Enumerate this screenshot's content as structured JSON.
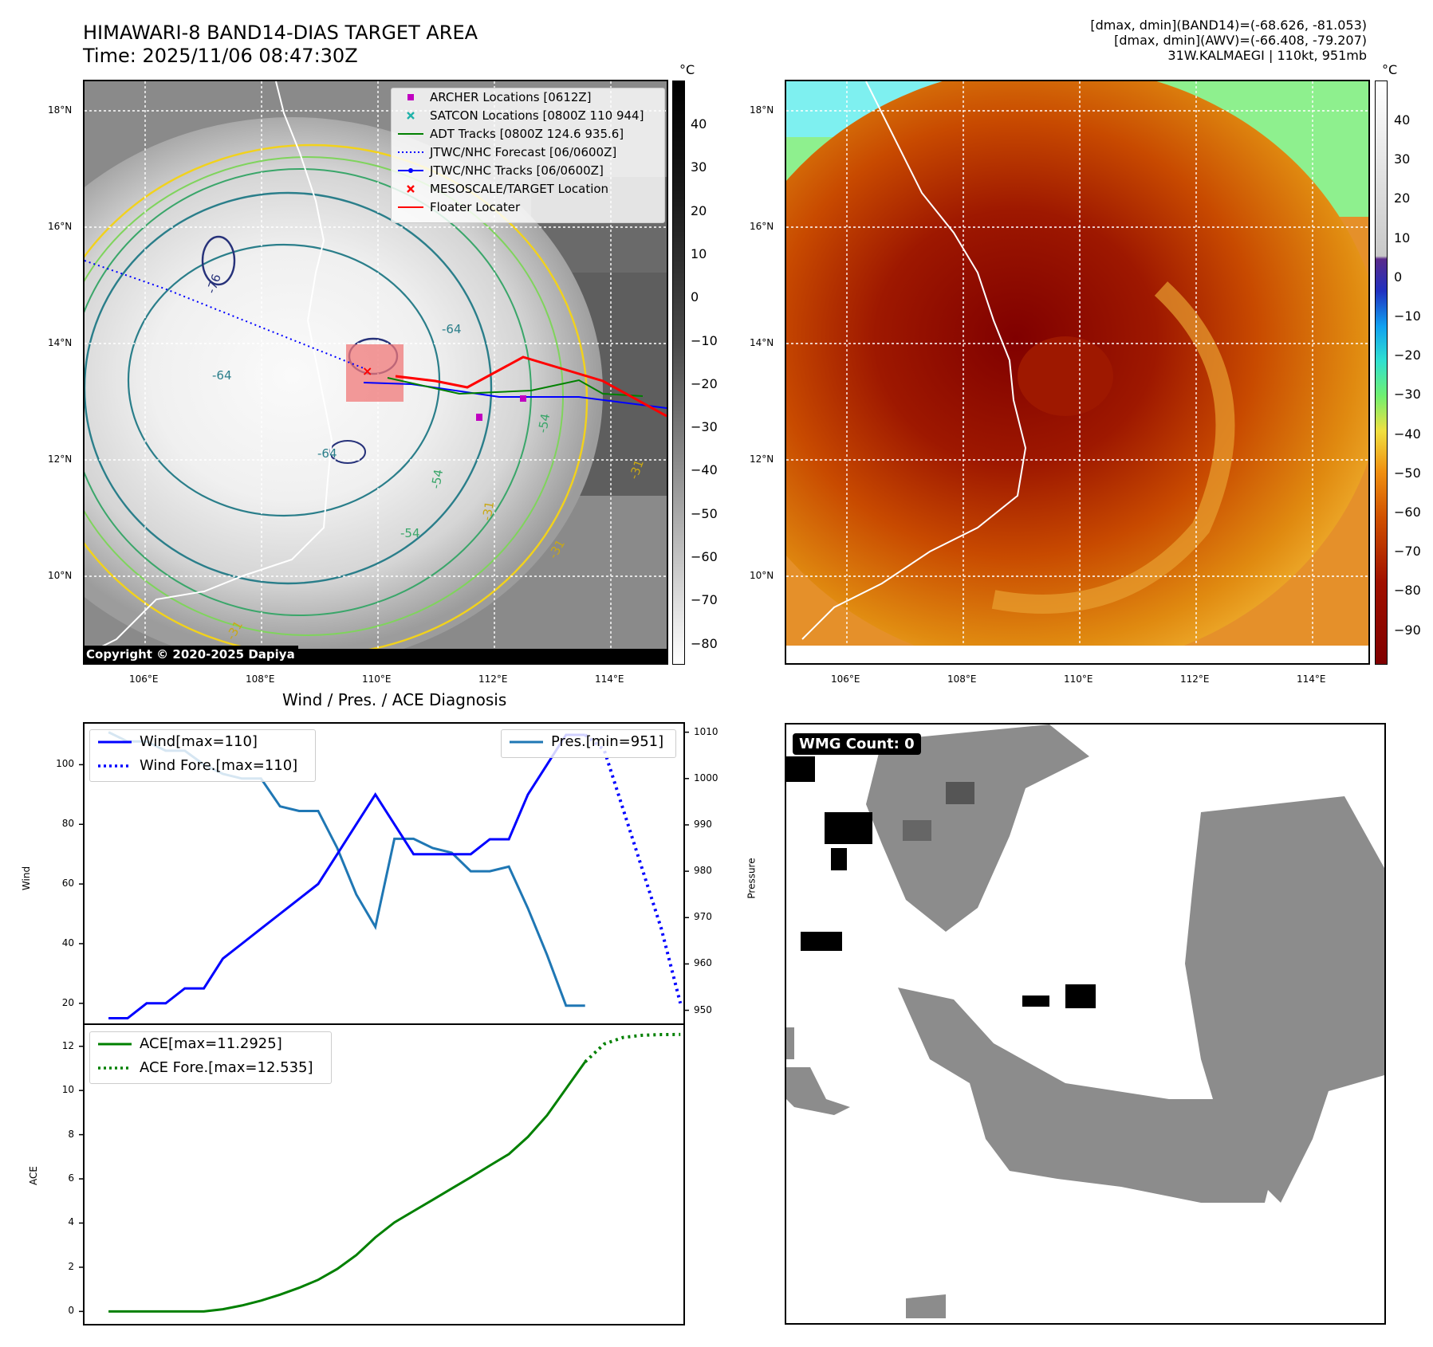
{
  "header": {
    "title_line1": "HIMAWARI-8 BAND14-DIAS TARGET AREA",
    "title_line2": "Time: 2025/11/06 08:47:30Z",
    "right_line1": "[dmax, dmin](BAND14)=(-68.626, -81.053)",
    "right_line2": "[dmax, dmin](AWV)=(-66.408, -79.207)",
    "right_line3": "31W.KALMAEGI | 110kt, 951mb"
  },
  "map_common": {
    "lat_labels": [
      "18°N",
      "16°N",
      "14°N",
      "12°N",
      "10°N"
    ],
    "lon_labels": [
      "106°E",
      "108°E",
      "110°E",
      "112°E",
      "114°E"
    ]
  },
  "left_map": {
    "colorbar_unit": "°C",
    "colorbar_ticks": [
      "40",
      "30",
      "20",
      "10",
      "0",
      "−10",
      "−20",
      "−30",
      "−40",
      "−50",
      "−60",
      "−70",
      "−80"
    ],
    "contour_labels": [
      "-76",
      "-64",
      "-64",
      "-64",
      "-54",
      "-54",
      "-54",
      "-31",
      "-31",
      "-31",
      "-31"
    ],
    "legend": [
      {
        "label": "ARCHER Locations [0612Z]",
        "color": "#c000c0",
        "symbol": "square"
      },
      {
        "label": "SATCON Locations [0800Z 110 944]",
        "color": "#20b2aa",
        "symbol": "x"
      },
      {
        "label": "ADT Tracks [0800Z 124.6 935.6]",
        "color": "#008000",
        "symbol": "line"
      },
      {
        "label": "JTWC/NHC Forecast [06/0600Z]",
        "color": "#0000ff",
        "symbol": "dotted"
      },
      {
        "label": "JTWC/NHC Tracks [06/0600Z]",
        "color": "#0000ff",
        "symbol": "line-dot"
      },
      {
        "label": "MESOSCALE/TARGET Location",
        "color": "#ff0000",
        "symbol": "x"
      },
      {
        "label": "Floater Locater",
        "color": "#ff0000",
        "symbol": "line"
      }
    ],
    "copyright": "Copyright © 2020-2025 Dapiya"
  },
  "right_map": {
    "colorbar_unit": "°C",
    "colorbar_ticks": [
      "40",
      "30",
      "20",
      "10",
      "0",
      "−10",
      "−20",
      "−30",
      "−40",
      "−50",
      "−60",
      "−70",
      "−80",
      "−90"
    ]
  },
  "wmg": {
    "badge": "WMG Count: 0"
  },
  "chart_data": [
    {
      "type": "line",
      "title": "Wind / Pres. / ACE Diagnosis",
      "ylabel": "Wind",
      "ylabel_right": "Pressure",
      "ylim": [
        13,
        114
      ],
      "ylim_right": [
        947,
        1012
      ],
      "y_ticks": [
        20,
        40,
        60,
        80,
        100
      ],
      "y_ticks_right": [
        950,
        960,
        970,
        980,
        990,
        1000,
        1010
      ],
      "x": [
        0,
        1,
        2,
        3,
        4,
        5,
        6,
        7,
        8,
        9,
        10,
        11,
        12,
        13,
        14,
        15,
        16,
        17,
        18,
        19,
        20,
        21,
        22,
        23,
        24,
        25,
        26,
        27,
        28,
        29,
        30
      ],
      "xlim": [
        -1.3,
        30.2
      ],
      "series": [
        {
          "name": "Wind[max=110]",
          "axis": "left",
          "color": "#0000ff",
          "style": "solid",
          "x": [
            0,
            1,
            2,
            3,
            4,
            5,
            6,
            7,
            8,
            9,
            10,
            11,
            12,
            13,
            14,
            15,
            16,
            17,
            18,
            19,
            20,
            21,
            22,
            23,
            24,
            25
          ],
          "values": [
            15,
            15,
            20,
            20,
            25,
            25,
            35,
            40,
            45,
            50,
            55,
            60,
            70,
            80,
            90,
            80,
            70,
            70,
            70,
            70,
            75,
            75,
            90,
            100,
            110,
            110
          ]
        },
        {
          "name": "Wind Fore.[max=110]",
          "axis": "left",
          "color": "#0000ff",
          "style": "dotted",
          "x": [
            25,
            26,
            27,
            28,
            29,
            30
          ],
          "values": [
            110,
            105,
            85,
            65,
            45,
            20
          ]
        },
        {
          "name": "Pres.[min=951]",
          "axis": "right",
          "color": "#1f77b4",
          "style": "solid",
          "x": [
            0,
            1,
            2,
            3,
            4,
            5,
            6,
            7,
            8,
            9,
            10,
            11,
            12,
            13,
            14,
            15,
            16,
            17,
            18,
            19,
            20,
            21,
            22,
            23,
            24,
            25
          ],
          "values": [
            1010,
            1008,
            1008,
            1006,
            1006,
            1003,
            1001,
            1000,
            1000,
            994,
            993,
            993,
            985,
            975,
            968,
            987,
            987,
            985,
            984,
            980,
            980,
            981,
            972,
            962,
            951,
            951
          ]
        }
      ],
      "legend_placement": [
        "upper-left",
        "upper-right"
      ]
    },
    {
      "type": "line",
      "ylabel": "ACE",
      "ylim": [
        -0.6,
        13.0
      ],
      "y_ticks": [
        0,
        2,
        4,
        6,
        8,
        10,
        12
      ],
      "xlim": [
        -1.3,
        30.2
      ],
      "series": [
        {
          "name": "ACE[max=11.2925]",
          "color": "#008000",
          "style": "solid",
          "x": [
            0,
            1,
            2,
            3,
            4,
            5,
            6,
            7,
            8,
            9,
            10,
            11,
            12,
            13,
            14,
            15,
            16,
            17,
            18,
            19,
            20,
            21,
            22,
            23,
            24,
            25
          ],
          "values": [
            0,
            0,
            0,
            0,
            0,
            0,
            0.1,
            0.27,
            0.49,
            0.76,
            1.07,
            1.43,
            1.92,
            2.55,
            3.35,
            4.03,
            4.54,
            5.05,
            5.56,
            6.07,
            6.6,
            7.12,
            7.9,
            8.87,
            10.08,
            11.2925
          ]
        },
        {
          "name": "ACE Fore.[max=12.535]",
          "color": "#008000",
          "style": "dotted",
          "x": [
            25,
            26,
            27,
            28,
            29,
            30
          ],
          "values": [
            11.2925,
            12.1,
            12.4,
            12.5,
            12.53,
            12.535
          ]
        }
      ],
      "legend_placement": "upper-left"
    }
  ]
}
